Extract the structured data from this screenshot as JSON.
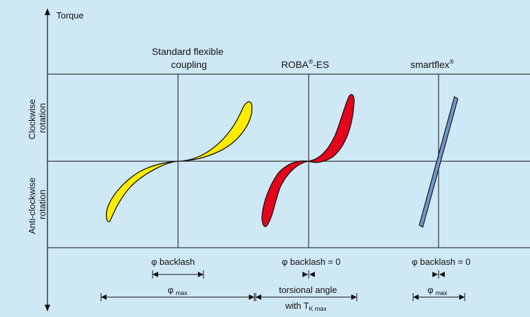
{
  "colors": {
    "background": "#cfe8f5",
    "line": "#111111",
    "standard_fill": "#ffec00",
    "roba_fill": "#e3051b",
    "smartflex_fill": "#6f97cc"
  },
  "axis": {
    "y_label": "Torque",
    "clockwise_line1": "Clockwise",
    "clockwise_line2": "rotation",
    "anticlockwise_line1": "Anti-clockwise",
    "anticlockwise_line2": "rotation"
  },
  "columns": {
    "standard": {
      "title_line1": "Standard flexible",
      "title_line2": "coupling"
    },
    "roba": {
      "title": "ROBA",
      "title_suffix": "-ES",
      "reg": "®"
    },
    "smartflex": {
      "title": "smartflex",
      "reg": "®"
    }
  },
  "backlash": {
    "standard": "φ backlash",
    "roba": "φ backlash = 0",
    "smartflex": "φ backlash = 0"
  },
  "angles": {
    "phi": "φ",
    "max": "max",
    "torsional_line1": "torsional angle",
    "torsional_with": "with T",
    "torsional_sub": "K max"
  }
}
